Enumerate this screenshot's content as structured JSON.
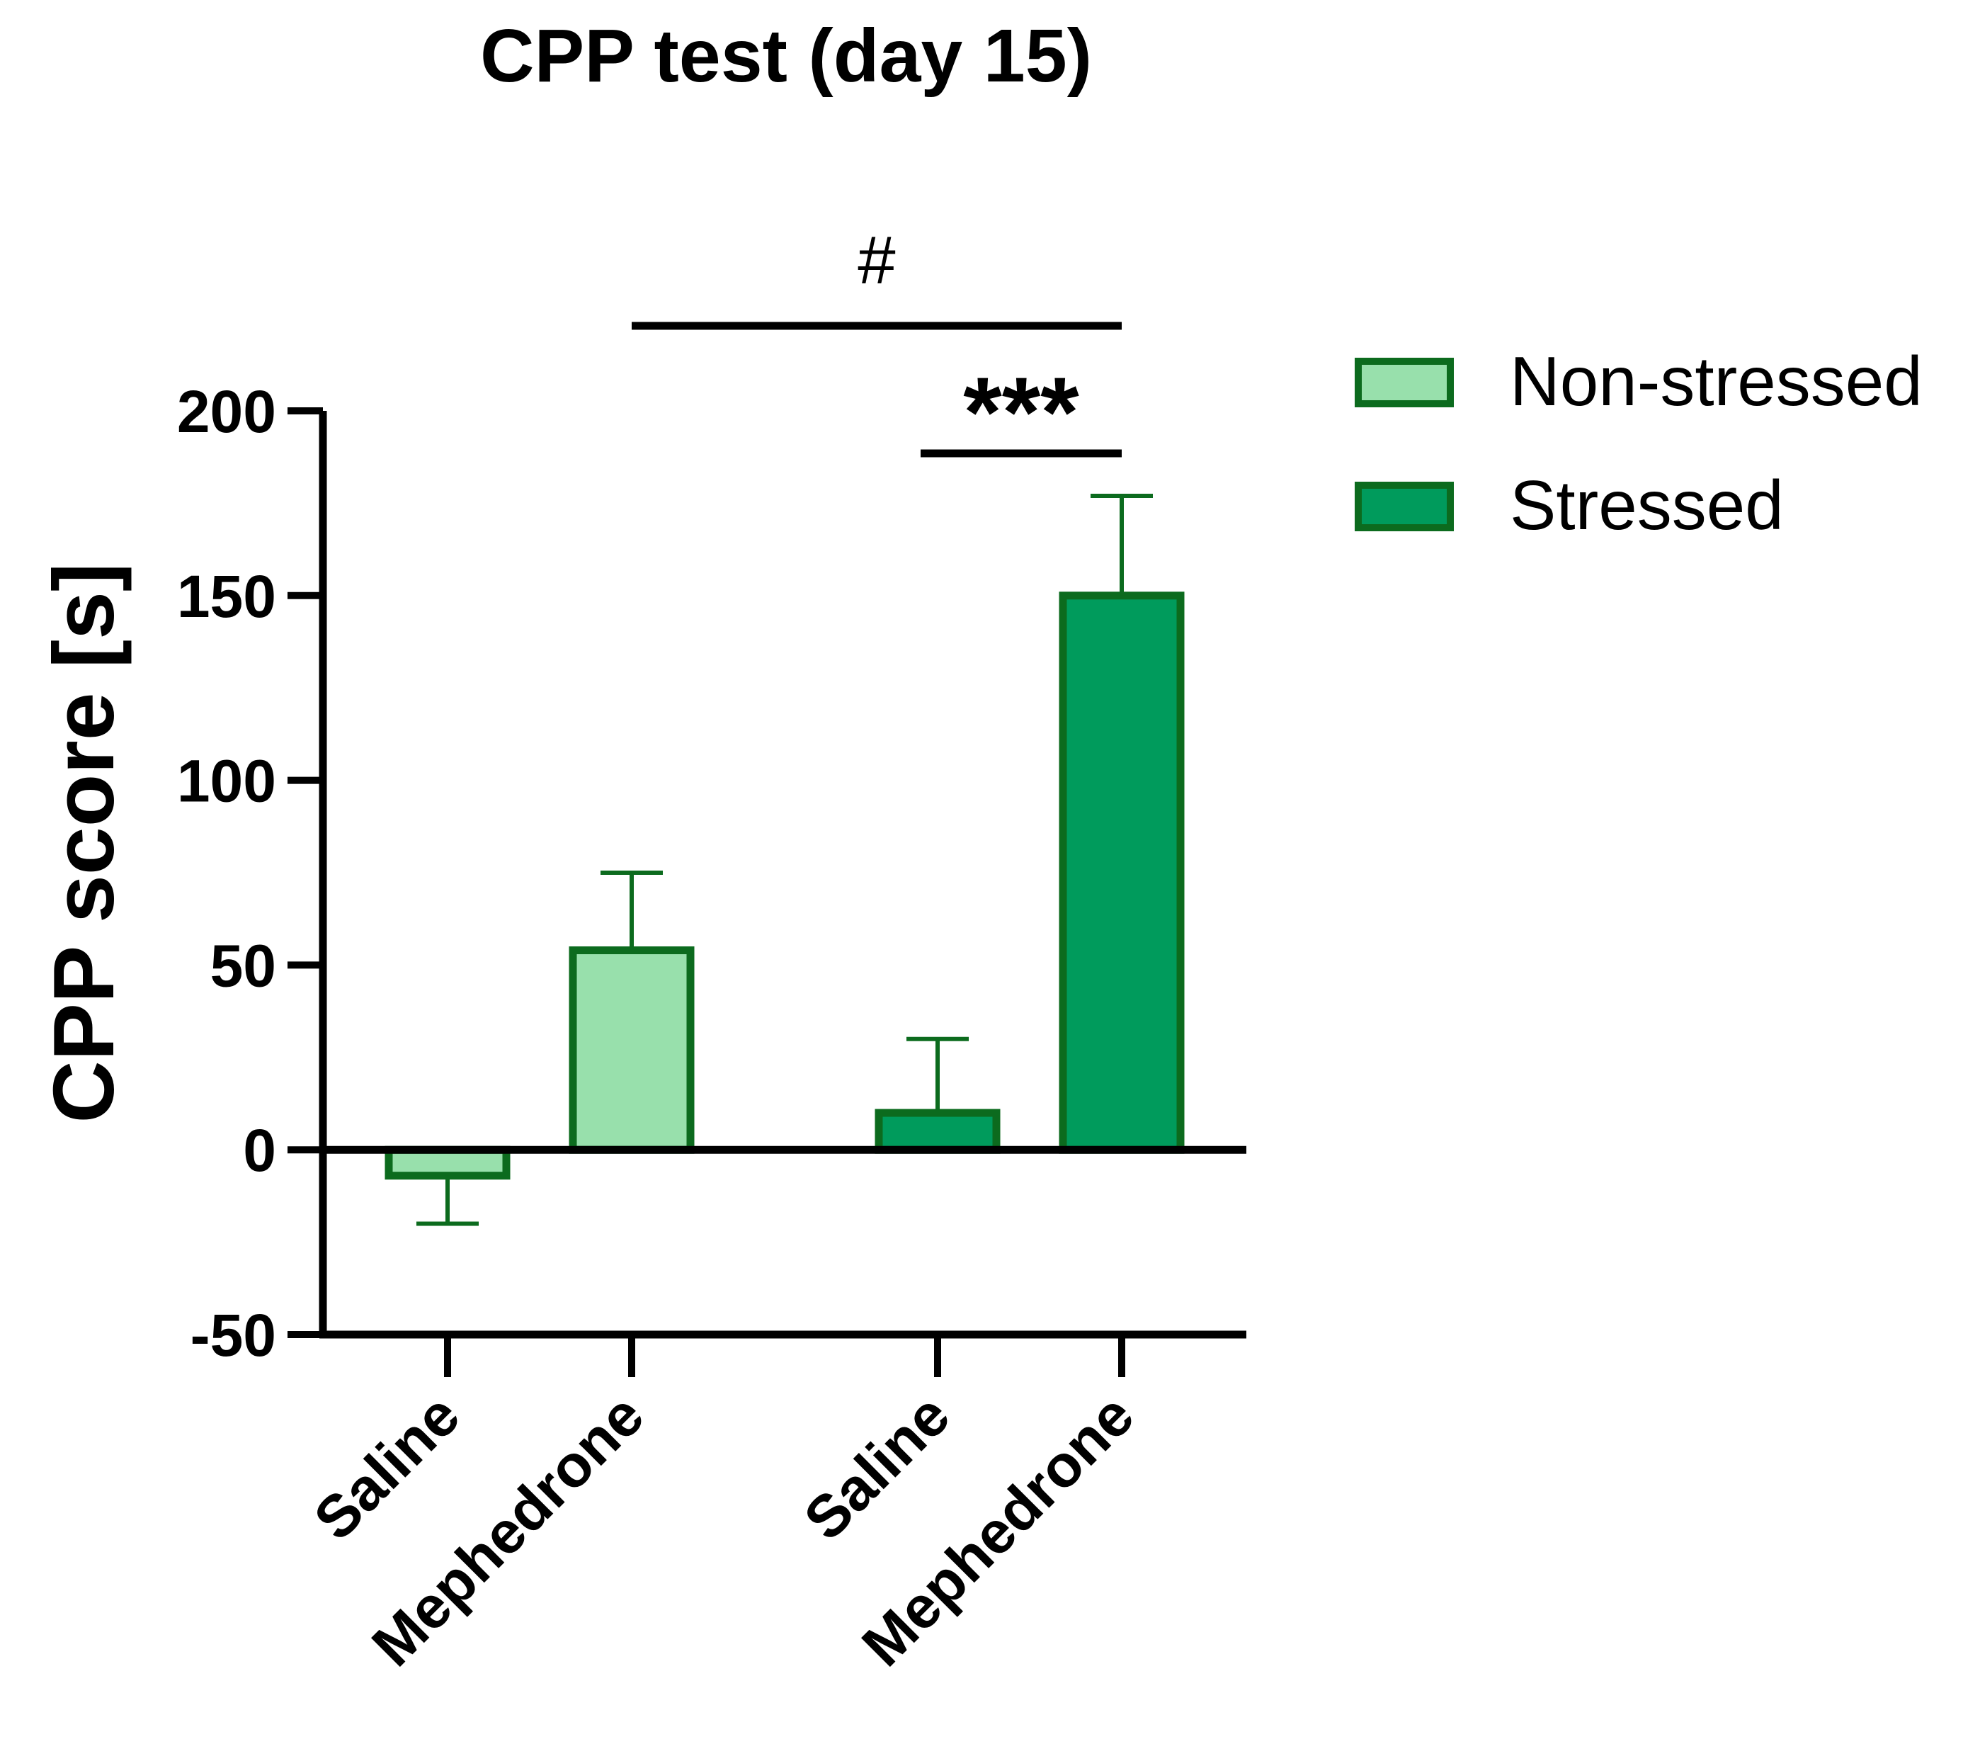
{
  "chart_data": {
    "type": "bar",
    "title": "CPP test (day 15)",
    "xlabel": "",
    "ylabel": "CPP score [s]",
    "ylim": [
      -50,
      200
    ],
    "yticks": [
      -50,
      0,
      50,
      100,
      150,
      200
    ],
    "grid": false,
    "legend_position": "top-right",
    "categories": [
      "Saline",
      "Mephedrone",
      "Saline",
      "Mephedrone"
    ],
    "groups": [
      "Non-stressed",
      "Non-stressed",
      "Stressed",
      "Stressed"
    ],
    "values": [
      -7,
      54,
      10,
      150
    ],
    "error_upper": [
      -20,
      75,
      30,
      177
    ],
    "error_direction": [
      "down",
      "up",
      "up",
      "up"
    ],
    "series": [
      {
        "name": "Non-stressed",
        "fill": "#98e0ac",
        "stroke": "#0c6b1e"
      },
      {
        "name": "Stressed",
        "fill": "#009b5c",
        "stroke": "#0c6b1e"
      }
    ],
    "annotations": [
      {
        "label": "#",
        "from": 1,
        "to": 3,
        "level": "upper"
      },
      {
        "label": "***",
        "from": 2,
        "to": 3,
        "level": "lower"
      }
    ]
  }
}
